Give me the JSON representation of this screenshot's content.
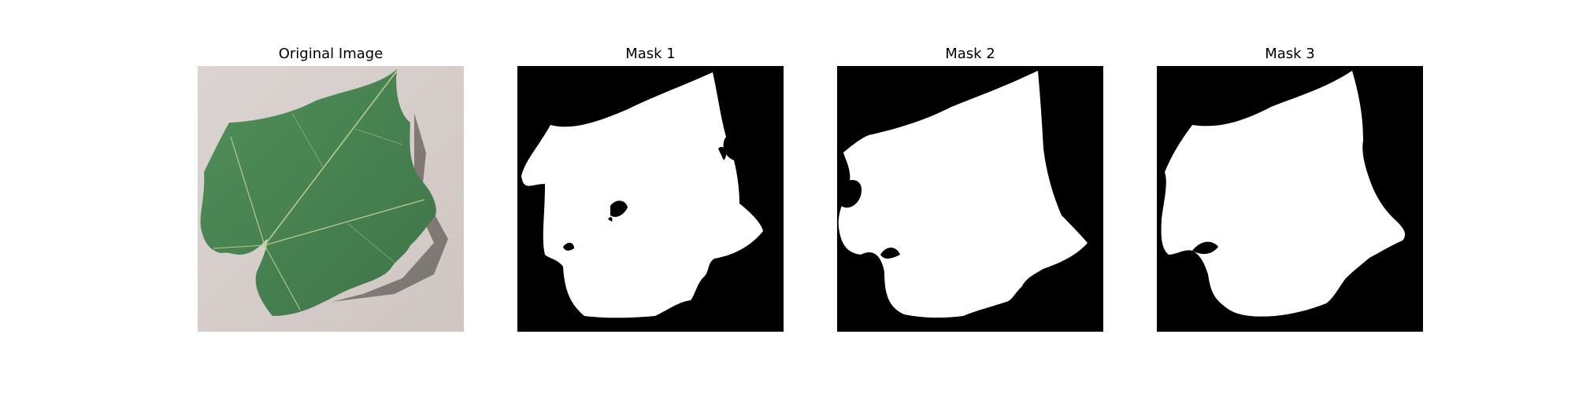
{
  "figure": {
    "panels": [
      {
        "title": "Original Image",
        "kind": "photo"
      },
      {
        "title": "Mask 1",
        "kind": "mask"
      },
      {
        "title": "Mask 2",
        "kind": "mask"
      },
      {
        "title": "Mask 3",
        "kind": "mask"
      }
    ],
    "colors": {
      "background": "#d7cfcb",
      "leaf": "#4f8c57",
      "leaf_dark": "#3c6f44",
      "mask_fg": "#ffffff",
      "mask_bg": "#000000"
    }
  }
}
